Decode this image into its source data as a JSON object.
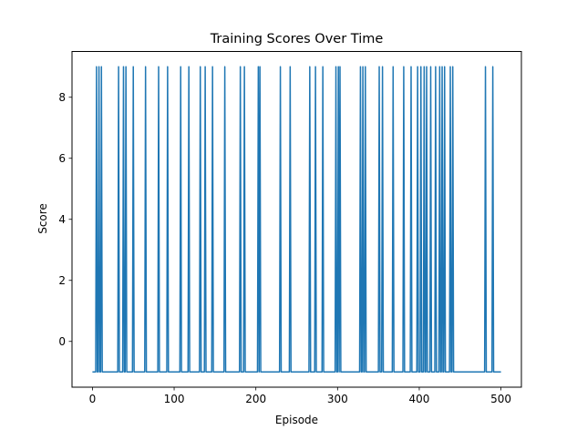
{
  "chart_data": {
    "type": "line",
    "title": "Training Scores Over Time",
    "xlabel": "Episode",
    "ylabel": "Score",
    "xlim": [
      -25,
      525
    ],
    "ylim": [
      -1.5,
      9.5
    ],
    "x_ticks": [
      0,
      100,
      200,
      300,
      400,
      500
    ],
    "y_ticks": [
      0,
      2,
      4,
      6,
      8
    ],
    "grid": false,
    "line_color": "#1f77b4",
    "episodes": [
      0,
      500
    ],
    "baseline_score": -1,
    "peak_score": 9,
    "peak_episodes": [
      5,
      8,
      11,
      32,
      38,
      41,
      50,
      65,
      81,
      92,
      108,
      118,
      132,
      138,
      147,
      162,
      181,
      186,
      203,
      205,
      230,
      242,
      266,
      273,
      282,
      298,
      301,
      303,
      328,
      331,
      334,
      351,
      355,
      368,
      381,
      390,
      398,
      402,
      406,
      409,
      414,
      420,
      425,
      428,
      431,
      438,
      441,
      481,
      490
    ]
  }
}
